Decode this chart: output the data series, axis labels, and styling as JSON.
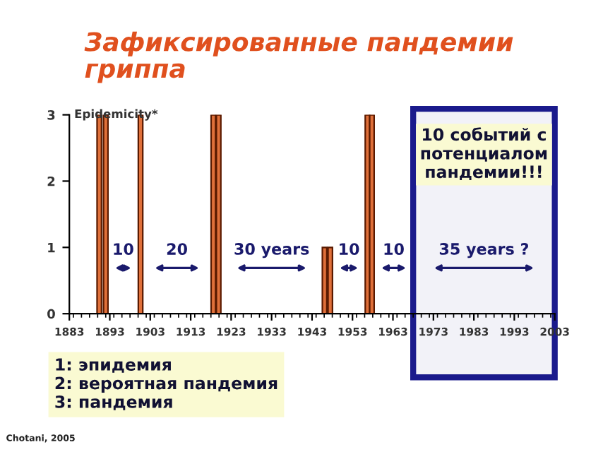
{
  "chart_data": {
    "type": "bar",
    "title": "Зафиксированные пандемии\nгриппа",
    "ylabel": "Epidemicity*",
    "x": [
      1890.4,
      1892.0,
      1900.6,
      1918.6,
      1919.9,
      1946.1,
      1947.5,
      1956.7,
      1957.8
    ],
    "values": [
      3,
      3,
      3,
      3,
      3,
      1,
      1,
      3,
      3
    ],
    "color": "#e0703a",
    "xlim": [
      1883,
      2003
    ],
    "xticks": [
      1883,
      1893,
      1903,
      1913,
      1923,
      1933,
      1943,
      1953,
      1963,
      1973,
      1983,
      1993,
      2003
    ],
    "ylim": [
      0,
      3
    ],
    "yticks": [
      0,
      1,
      2,
      3
    ],
    "grid": false,
    "bands": [
      {
        "axis": "x",
        "from": 1968,
        "to": 2003,
        "label": "10 событий с\nпотенциалом\nпандемии!!!",
        "color": "#1a1a8c"
      }
    ],
    "annotations": [
      "10",
      "20",
      "30 years",
      "10",
      "10",
      "35 years ?",
      "1: эпидемия\n2: вероятная пандемия\n3: пандемия",
      "Chotani, 2005"
    ]
  }
}
